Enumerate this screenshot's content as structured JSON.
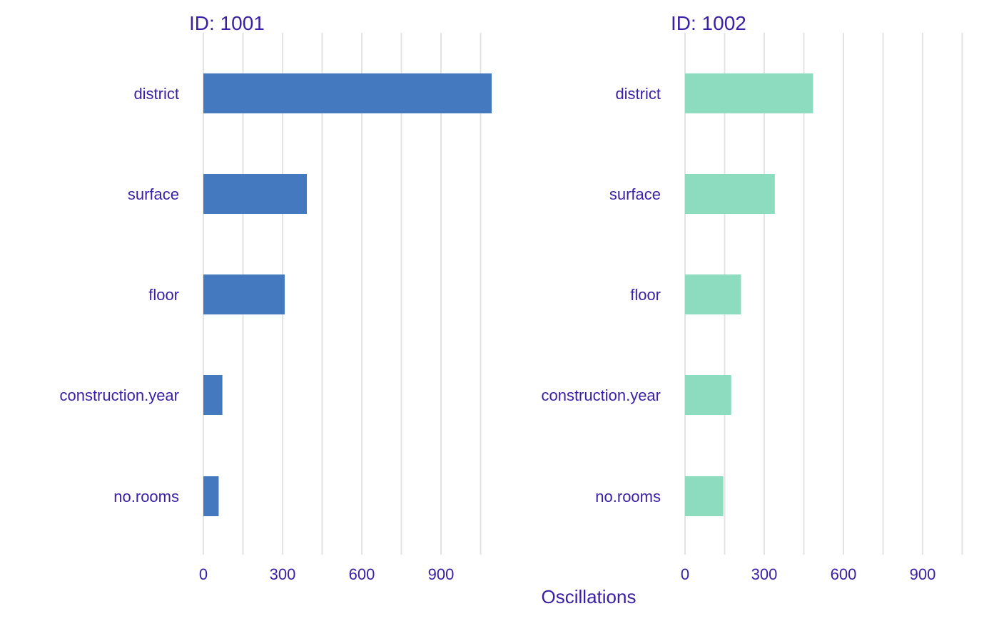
{
  "colors": {
    "text": "#3a1fa6",
    "grid": "#e3e3e3",
    "background": "#ffffff"
  },
  "chart_data": {
    "type": "bar",
    "orientation": "horizontal",
    "xlabel": "Oscillations",
    "xlim": [
      0,
      1080
    ],
    "x_ticks": [
      0,
      300,
      600,
      900
    ],
    "grid": true,
    "categories": [
      "district",
      "surface",
      "floor",
      "construction.year",
      "no.rooms"
    ],
    "panels": [
      {
        "title": "ID: 1001",
        "color": "#4478bf",
        "values": [
          1092,
          392,
          308,
          72,
          58
        ]
      },
      {
        "title": "ID: 1002",
        "color": "#8ddcbf",
        "values": [
          485,
          340,
          212,
          175,
          145
        ]
      }
    ]
  }
}
